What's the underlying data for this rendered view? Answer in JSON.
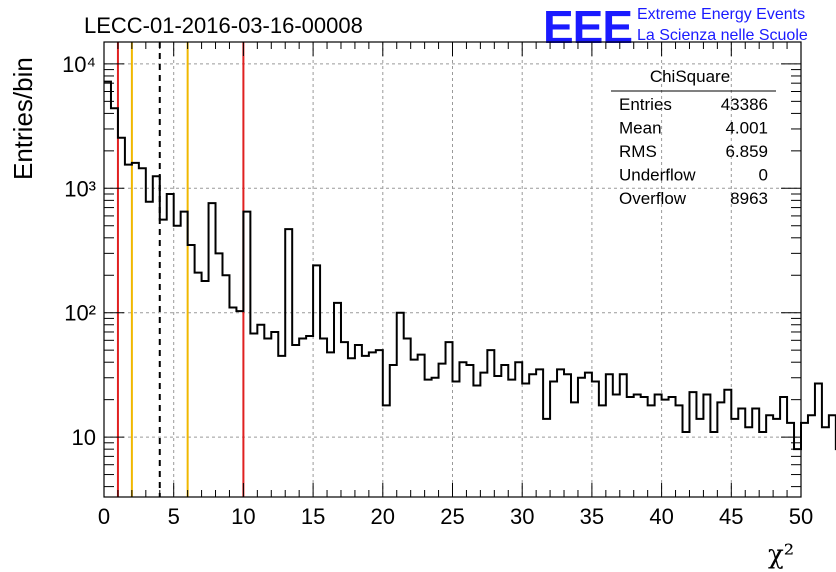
{
  "title": "LECC-01-2016-03-16-00008",
  "logo": {
    "mark": "EEE",
    "line1": "Extreme Energy Events",
    "line2": "La Scienza nelle Scuole",
    "color": "#1a1aff"
  },
  "stats_box": {
    "name": "ChiSquare",
    "rows": [
      {
        "label": "Entries",
        "value": "43386"
      },
      {
        "label": "Mean",
        "value": "4.001"
      },
      {
        "label": "RMS",
        "value": "6.859"
      },
      {
        "label": "Underflow",
        "value": "0"
      },
      {
        "label": "Overflow",
        "value": "8963"
      }
    ]
  },
  "chart_data": {
    "type": "histogram",
    "title": "LECC-01-2016-03-16-00008",
    "xlabel": "χ²",
    "ylabel": "Entries/bin",
    "xlim": [
      0,
      50
    ],
    "ylim": [
      3.3,
      15000
    ],
    "yscale": "log",
    "grid": true,
    "bin_width": 0.5,
    "x_ticks": [
      0,
      5,
      10,
      15,
      20,
      25,
      30,
      35,
      40,
      45,
      50
    ],
    "y_tick_labels": [
      {
        "value": 10,
        "label": "10"
      },
      {
        "value": 100,
        "label": "10²"
      },
      {
        "value": 1000,
        "label": "10³"
      },
      {
        "value": 10000,
        "label": "10⁴"
      }
    ],
    "values": [
      7200,
      4400,
      2550,
      1550,
      1600,
      1450,
      780,
      1250,
      560,
      900,
      500,
      650,
      350,
      210,
      180,
      760,
      300,
      200,
      110,
      103,
      650,
      68,
      80,
      62,
      70,
      45,
      470,
      55,
      62,
      65,
      240,
      62,
      48,
      120,
      58,
      43,
      55,
      45,
      48,
      50,
      18,
      38,
      100,
      62,
      42,
      46,
      29,
      30,
      39,
      58,
      28,
      40,
      38,
      26,
      33,
      50,
      31,
      38,
      29,
      40,
      27,
      32,
      35,
      14,
      28,
      35,
      32,
      19,
      30,
      33,
      28,
      18,
      32,
      22,
      32,
      21,
      22,
      21,
      18,
      22,
      20,
      21,
      18,
      11,
      23,
      14,
      22,
      11,
      19,
      24,
      14,
      17,
      12,
      17,
      11,
      15,
      14,
      21,
      13,
      8,
      13,
      15,
      27,
      12,
      15,
      8,
      17,
      10,
      11,
      17,
      12,
      9,
      8.5,
      14,
      9,
      13,
      21,
      13,
      11,
      10
    ],
    "vertical_lines": [
      {
        "x": 1,
        "color": "#e02020",
        "style": "solid"
      },
      {
        "x": 2,
        "color": "#f0b800",
        "style": "solid"
      },
      {
        "x": 4,
        "color": "#000000",
        "style": "dashed"
      },
      {
        "x": 6,
        "color": "#f0b800",
        "style": "solid"
      },
      {
        "x": 10,
        "color": "#e02020",
        "style": "solid"
      }
    ]
  }
}
